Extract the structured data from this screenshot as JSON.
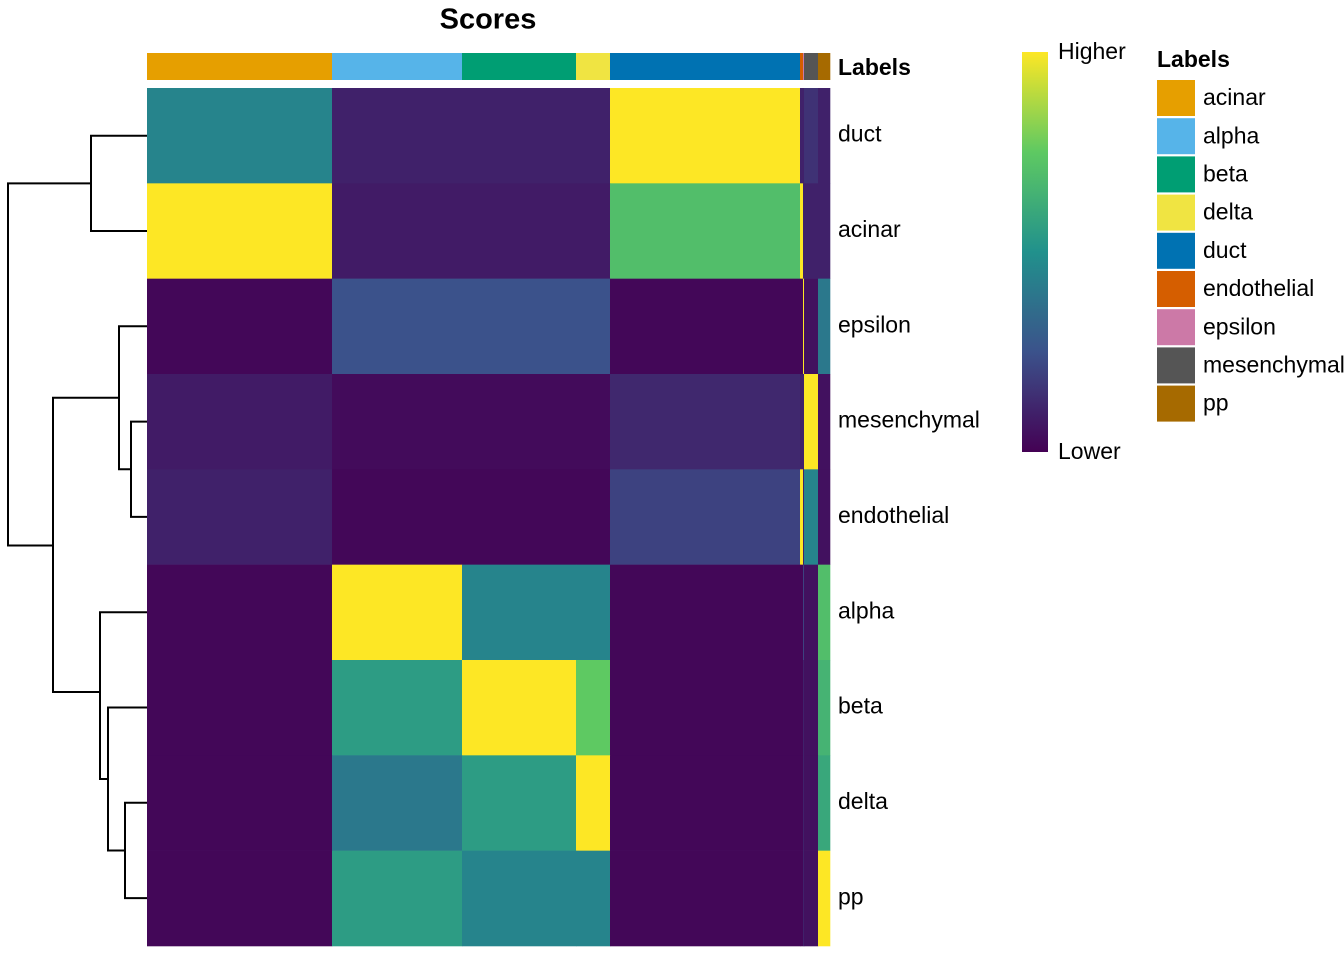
{
  "chart_data": {
    "type": "heatmap",
    "title": "Scores",
    "annotation_label": "Labels",
    "legend_title": "Labels",
    "rows": [
      "duct",
      "acinar",
      "epsilon",
      "mesenchymal",
      "endothelial",
      "alpha",
      "beta",
      "delta",
      "pp"
    ],
    "groups": [
      "acinar",
      "alpha",
      "beta",
      "delta",
      "duct",
      "endothelial",
      "epsilon",
      "mesenchymal",
      "pp"
    ],
    "group_colors": [
      "#E69F00",
      "#56B4E9",
      "#009E73",
      "#F0E442",
      "#0072B2",
      "#D55E00",
      "#CC79A7",
      "#555555",
      "#A66A00"
    ],
    "column_counts": [
      185,
      130,
      114,
      34,
      190,
      3,
      1,
      14,
      12
    ],
    "values": [
      [
        0.45,
        0.1,
        0.1,
        0.1,
        1,
        0.1,
        0.1,
        0.15,
        0.1
      ],
      [
        1,
        0.08,
        0.08,
        0.08,
        0.7,
        1,
        0.1,
        0.1,
        0.1
      ],
      [
        0.02,
        0.25,
        0.25,
        0.25,
        0.02,
        0.02,
        1,
        0.05,
        0.4
      ],
      [
        0.08,
        0.03,
        0.03,
        0.03,
        0.12,
        0.1,
        0.1,
        1,
        0.05
      ],
      [
        0.1,
        0.02,
        0.02,
        0.02,
        0.2,
        1,
        0.1,
        0.45,
        0.05
      ],
      [
        0.02,
        1,
        0.45,
        0.45,
        0.02,
        0.02,
        0.2,
        0.05,
        0.7
      ],
      [
        0.02,
        0.55,
        1,
        0.75,
        0.02,
        0.02,
        0.1,
        0.05,
        0.65
      ],
      [
        0.02,
        0.4,
        0.55,
        1,
        0.02,
        0.02,
        0.1,
        0.05,
        0.6
      ],
      [
        0.02,
        0.55,
        0.45,
        0.45,
        0.02,
        0.02,
        0.1,
        0.05,
        1
      ]
    ],
    "colormap": "viridis",
    "colorbar_high_label": "Higher",
    "colorbar_low_label": "Lower"
  }
}
